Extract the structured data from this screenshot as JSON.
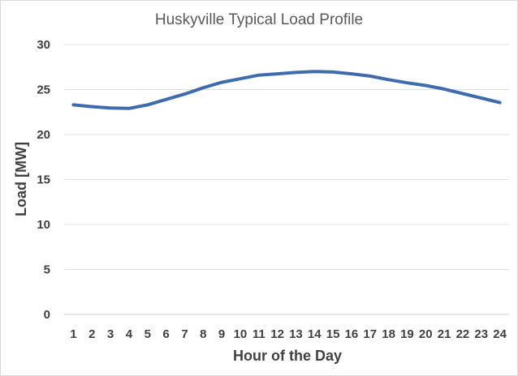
{
  "colors": {
    "series": "#3f6bad",
    "text": "#404040",
    "title": "#595959",
    "grid": "#e0e0e0"
  },
  "chart_data": {
    "type": "line",
    "title": "Huskyville Typical Load Profile",
    "xlabel": "Hour of the Day",
    "ylabel": "Load [MW]",
    "ylim": [
      0,
      30
    ],
    "yticks": [
      "0",
      "5",
      "10",
      "15",
      "20",
      "25",
      "30"
    ],
    "grid": true,
    "x": [
      "1",
      "2",
      "3",
      "4",
      "5",
      "6",
      "7",
      "8",
      "9",
      "10",
      "11",
      "12",
      "13",
      "14",
      "15",
      "16",
      "17",
      "18",
      "19",
      "20",
      "21",
      "22",
      "23",
      "24"
    ],
    "series": [
      {
        "values": [
          23.3,
          23.1,
          22.95,
          22.9,
          23.3,
          23.9,
          24.5,
          25.2,
          25.8,
          26.2,
          26.6,
          26.75,
          26.9,
          27.0,
          26.95,
          26.75,
          26.5,
          26.1,
          25.75,
          25.45,
          25.05,
          24.55,
          24.05,
          23.55
        ]
      }
    ]
  }
}
